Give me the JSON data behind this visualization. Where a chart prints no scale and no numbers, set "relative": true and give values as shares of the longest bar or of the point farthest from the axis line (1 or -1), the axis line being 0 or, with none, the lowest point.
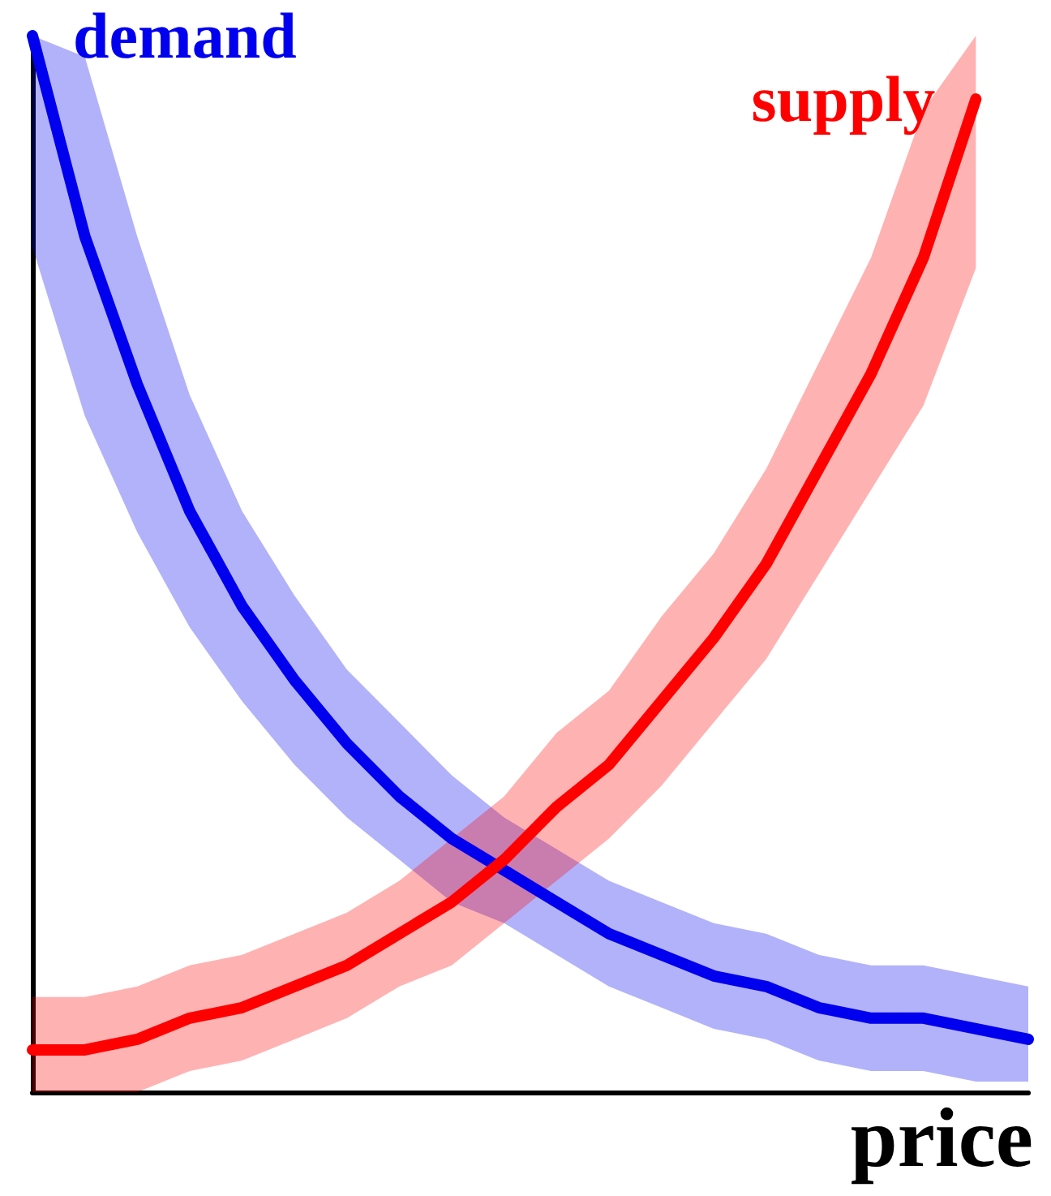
{
  "chart_data": {
    "type": "line",
    "relative": true,
    "xlabel": "price",
    "legend": false,
    "grid": false,
    "marker": "none",
    "line_style": "solid",
    "categories": [
      null,
      null,
      null,
      null,
      null,
      null,
      null,
      null,
      null,
      null,
      null,
      null,
      null,
      null,
      null,
      null,
      null,
      null,
      null,
      null
    ],
    "series": [
      {
        "name": "demand",
        "color": "#0000ee",
        "values": [
          1,
          0.81,
          0.67,
          0.55,
          0.46,
          0.39,
          0.33,
          0.28,
          0.24,
          0.21,
          0.18,
          0.15,
          0.13,
          0.11,
          0.1,
          0.08,
          0.07,
          0.07,
          0.06,
          0.05
        ],
        "lower": [
          0.8,
          0.64,
          0.53,
          0.44,
          0.37,
          0.31,
          0.26,
          0.22,
          0.18,
          0.16,
          0.13,
          0.1,
          0.08,
          0.06,
          0.05,
          0.03,
          0.02,
          0.02,
          0.01,
          0.01
        ],
        "upper": [
          1,
          0.98,
          0.81,
          0.66,
          0.55,
          0.47,
          0.4,
          0.35,
          0.3,
          0.26,
          0.23,
          0.2,
          0.18,
          0.16,
          0.15,
          0.13,
          0.12,
          0.12,
          0.11,
          0.1
        ]
      },
      {
        "name": "supply",
        "color": "#ff0000",
        "values": [
          0.04,
          0.04,
          0.05,
          0.07,
          0.08,
          0.1,
          0.12,
          0.15,
          0.18,
          0.22,
          0.27,
          0.31,
          0.37,
          0.43,
          0.5,
          0.59,
          0.68,
          0.79,
          0.94,
          null
        ],
        "lower": [
          0,
          0,
          0,
          0.02,
          0.03,
          0.05,
          0.07,
          0.1,
          0.12,
          0.16,
          0.2,
          0.24,
          0.29,
          0.35,
          0.41,
          0.49,
          0.57,
          0.65,
          0.78,
          null
        ],
        "upper": [
          0.09,
          0.09,
          0.1,
          0.12,
          0.13,
          0.15,
          0.17,
          0.2,
          0.24,
          0.28,
          0.34,
          0.38,
          0.45,
          0.51,
          0.59,
          0.69,
          0.79,
          0.93,
          1,
          null
        ]
      }
    ]
  }
}
